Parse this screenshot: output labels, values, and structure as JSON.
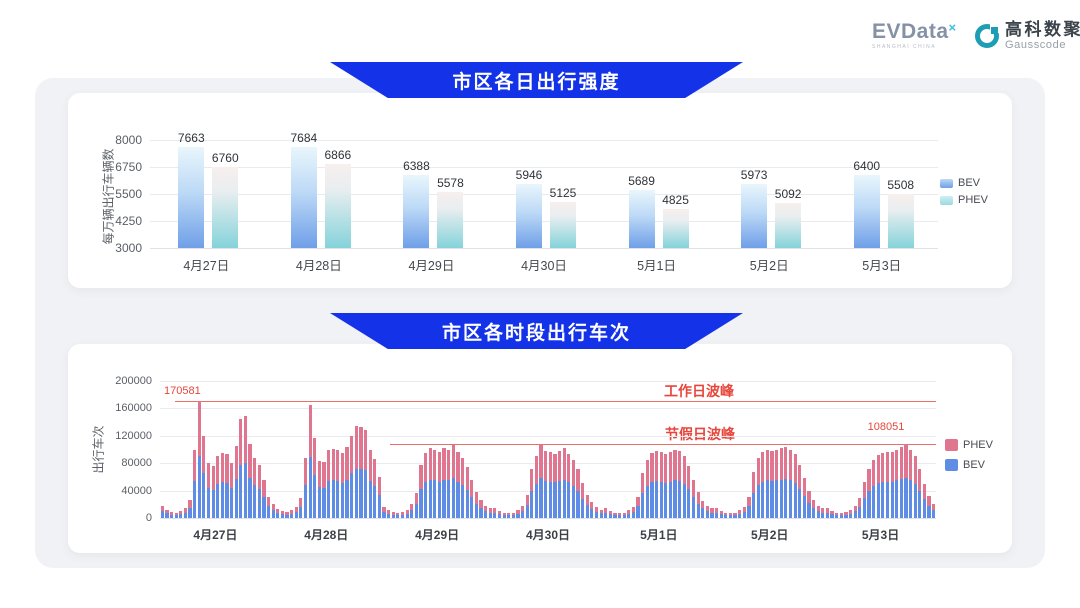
{
  "header": {
    "evdata_logo": {
      "text": "EVData",
      "mark": "×",
      "subtext": "SHANGHAI CHINA"
    },
    "gausscode_logo": {
      "cn": "高科数聚",
      "en": "Gausscode"
    }
  },
  "colors": {
    "banner_blue": "#1433e8",
    "bev_blue": "#5f8de5",
    "phev_rose": "#e0758f",
    "annotation_red": "#e6463c",
    "panel_gray": "#f1f2f5"
  },
  "chart_data": [
    {
      "type": "bar",
      "title": "市区各日出行强度",
      "ylabel": "每万辆出行车辆数",
      "categories": [
        "4月27日",
        "4月28日",
        "4月29日",
        "4月30日",
        "5月1日",
        "5月2日",
        "5月3日"
      ],
      "series": [
        {
          "name": "BEV",
          "values": [
            7663,
            7684,
            6388,
            5946,
            5689,
            5973,
            6400
          ]
        },
        {
          "name": "PHEV",
          "values": [
            6760,
            6866,
            5578,
            5125,
            4825,
            5092,
            5508
          ]
        }
      ],
      "ylim": [
        3000,
        8000
      ],
      "yticks": [
        3000,
        4250,
        5500,
        6750,
        8000
      ],
      "grid": true,
      "legend_position": "right"
    },
    {
      "type": "stacked-bar",
      "title": "市区各时段出行车次",
      "ylabel": "出行车次",
      "categories": [
        "4月27日",
        "4月28日",
        "4月29日",
        "4月30日",
        "5月1日",
        "5月2日",
        "5月3日"
      ],
      "hours_per_day": 24,
      "ylim": [
        0,
        200000
      ],
      "yticks": [
        0,
        40000,
        80000,
        120000,
        160000,
        200000
      ],
      "legend_position": "right",
      "series": [
        {
          "name": "PHEV",
          "days": [
            [
              8000,
              5000,
              4000,
              3500,
              4500,
              7000,
              12000,
              46000,
              79581,
              55000,
              37000,
              35000,
              41000,
              43000,
              42000,
              37000,
              48000,
              67000,
              69000,
              50000,
              40000,
              36000,
              25000,
              13000
            ],
            [
              9000,
              6000,
              4500,
              4000,
              5000,
              7000,
              13000,
              40000,
              76000,
              54000,
              38000,
              38000,
              46000,
              46000,
              46000,
              44000,
              47000,
              55000,
              62000,
              61000,
              59000,
              46000,
              39000,
              27000
            ],
            [
              7000,
              5000,
              4000,
              3500,
              4000,
              5500,
              9000,
              16000,
              35000,
              43000,
              46000,
              45000,
              43000,
              46000,
              45000,
              48000,
              43000,
              40000,
              34000,
              25000,
              17000,
              12000,
              8000,
              6000
            ],
            [
              6000,
              4500,
              3500,
              3000,
              3500,
              5000,
              8000,
              15000,
              32000,
              41000,
              48000,
              44000,
              43000,
              42000,
              44000,
              46000,
              42000,
              38000,
              32000,
              23000,
              15000,
              10000,
              7000,
              5000
            ],
            [
              6000,
              4500,
              3500,
              3000,
              3500,
              5000,
              7000,
              13000,
              29000,
              38000,
              43000,
              44000,
              43000,
              42000,
              43000,
              45000,
              44000,
              41000,
              34000,
              25000,
              17000,
              11000,
              8000,
              6000
            ],
            [
              6000,
              4500,
              3500,
              3000,
              3500,
              5000,
              7000,
              13000,
              30000,
              39000,
              43000,
              45000,
              44000,
              45000,
              46000,
              47000,
              45000,
              42000,
              35000,
              26000,
              18000,
              12000,
              8000,
              6000
            ],
            [
              6000,
              4500,
              3500,
              3000,
              4000,
              5500,
              8000,
              13000,
              23000,
              32000,
              38000,
              41000,
              43000,
              44000,
              43000,
              45000,
              47000,
              49000,
              45000,
              40000,
              32000,
              22000,
              14000,
              9000
            ]
          ]
        },
        {
          "name": "BEV",
          "days": [
            [
              10000,
              7000,
              5000,
              4500,
              5500,
              8000,
              15000,
              54000,
              91000,
              65000,
              44000,
              41000,
              49000,
              52000,
              51000,
              44000,
              57000,
              78000,
              80000,
              58000,
              48000,
              42000,
              30000,
              17000
            ],
            [
              11000,
              7000,
              5500,
              5000,
              6000,
              9000,
              16000,
              48000,
              89000,
              63000,
              45000,
              44000,
              54000,
              55000,
              54000,
              51000,
              56000,
              65000,
              72000,
              72000,
              70000,
              54000,
              47000,
              33000
            ],
            [
              9000,
              6000,
              5000,
              4500,
              5000,
              6500,
              11000,
              20000,
              43000,
              52000,
              56000,
              55000,
              53000,
              56000,
              55000,
              59000,
              53000,
              48000,
              41000,
              30000,
              21000,
              14000,
              10000,
              8000
            ],
            [
              8000,
              5500,
              4500,
              4000,
              4500,
              6000,
              10000,
              19000,
              40000,
              50000,
              58000,
              54000,
              53000,
              52000,
              54000,
              56000,
              52000,
              47000,
              39000,
              28000,
              19000,
              13000,
              9000,
              7000
            ],
            [
              8000,
              5500,
              4500,
              4000,
              4500,
              6000,
              9000,
              17000,
              36000,
              47000,
              52000,
              54000,
              53000,
              51000,
              53000,
              55000,
              54000,
              50000,
              42000,
              31000,
              21000,
              14000,
              10000,
              8000
            ],
            [
              8000,
              5500,
              4500,
              4000,
              4500,
              6000,
              9000,
              17000,
              37000,
              48000,
              53000,
              55000,
              54000,
              55000,
              56000,
              57000,
              55000,
              51000,
              43000,
              32000,
              22000,
              15000,
              10000,
              8000
            ],
            [
              8000,
              5500,
              4500,
              4000,
              5000,
              6500,
              10000,
              16000,
              29000,
              40000,
              47000,
              51000,
              52000,
              53000,
              53000,
              55000,
              57000,
              59051,
              55000,
              50000,
              40000,
              28000,
              18000,
              11000
            ]
          ]
        }
      ],
      "annotations": {
        "workday_peak": {
          "label": "工作日波峰",
          "value": 170581,
          "value_label": "170581"
        },
        "holiday_peak": {
          "label": "节假日波峰",
          "value": 108051,
          "value_label": "108051"
        }
      }
    }
  ]
}
